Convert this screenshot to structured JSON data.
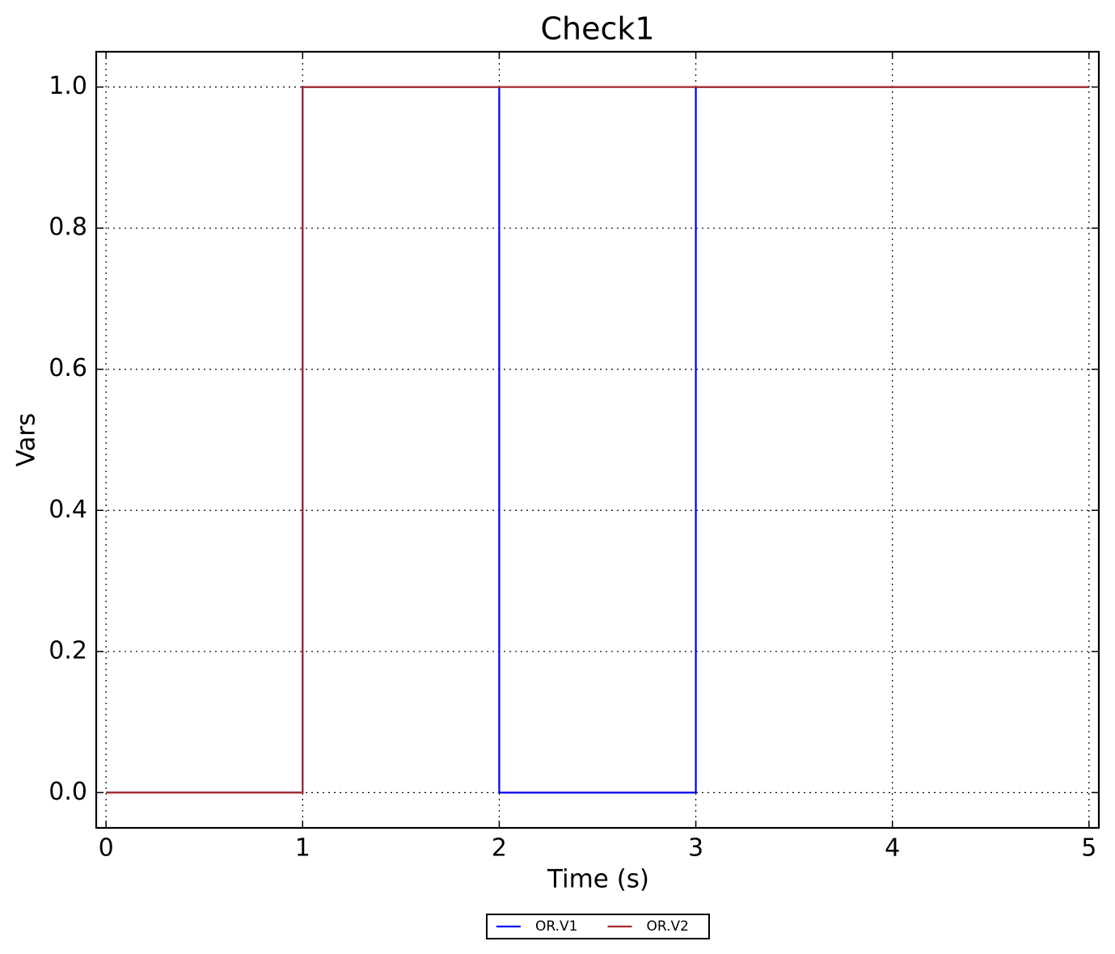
{
  "chart_data": {
    "type": "line",
    "title": "Check1",
    "x_label": "Time (s)",
    "y_label": "Vars",
    "xlim": [
      -0.05,
      5.05
    ],
    "ylim": [
      -0.05,
      1.05
    ],
    "xticks": [
      0,
      1,
      2,
      3,
      4,
      5
    ],
    "yticks": [
      {
        "value": 0,
        "label": "0.0"
      },
      {
        "value": 0.2,
        "label": "0.2"
      },
      {
        "value": 0.4,
        "label": "0.4"
      },
      {
        "value": 0.6,
        "label": "0.6"
      },
      {
        "value": 0.8,
        "label": "0.8"
      },
      {
        "value": 1,
        "label": "1.0"
      }
    ],
    "grid": true,
    "legend": "bottom",
    "series": [
      {
        "name": "OR.V1",
        "color": "#0000ee",
        "x": [
          0,
          1,
          1,
          2,
          2,
          3,
          3,
          5
        ],
        "values": [
          0,
          0,
          1,
          1,
          0,
          0,
          1,
          1
        ]
      },
      {
        "name": "OR.V2",
        "color": "#a52a2a",
        "x": [
          0,
          1,
          1,
          5
        ],
        "values": [
          0,
          0,
          1,
          1
        ]
      }
    ]
  }
}
